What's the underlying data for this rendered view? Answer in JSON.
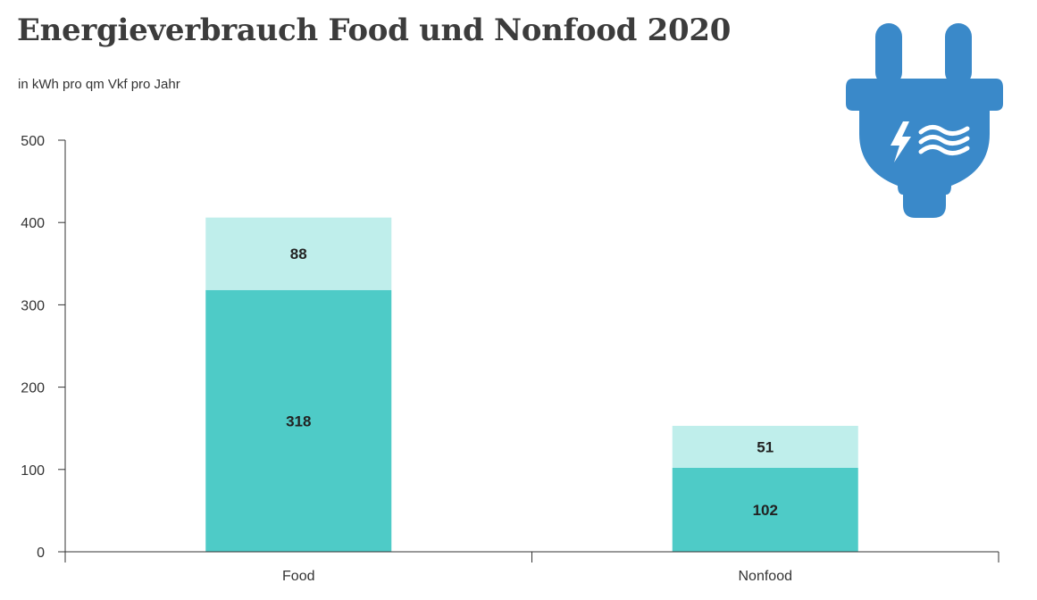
{
  "title": "Energieverbrauch Food und Nonfood 2020",
  "subtitle": "in kWh pro qm Vkf pro Jahr",
  "colors": {
    "segment_lower": "#4ecbc7",
    "segment_upper": "#bfeeeb",
    "icon": "#3a89c9",
    "axis": "#333333"
  },
  "icon": "power-plug-icon",
  "chart_data": {
    "type": "bar",
    "stacked": true,
    "categories": [
      "Food",
      "Nonfood"
    ],
    "series": [
      {
        "values": [
          318,
          102
        ]
      },
      {
        "values": [
          88,
          51
        ]
      }
    ],
    "yticks": [
      0,
      100,
      200,
      300,
      400,
      500
    ],
    "ylim": [
      0,
      500
    ],
    "grid": false,
    "legend": "none"
  }
}
